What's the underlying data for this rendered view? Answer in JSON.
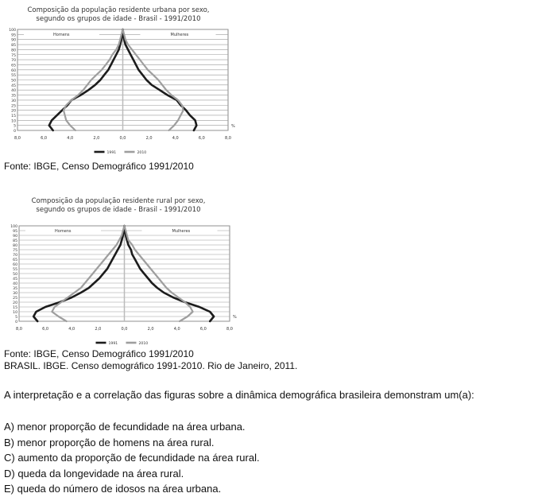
{
  "chart_data": [
    {
      "type": "population-pyramid",
      "title": "Composição da população residente urbana por sexo,",
      "subtitle": "segundo os grupos de idade - Brasil - 1991/2010",
      "left_label": "Homens",
      "right_label": "Mulheres",
      "unit_label": "%",
      "age_ticks": [
        "100",
        "95",
        "90",
        "85",
        "80",
        "75",
        "70",
        "65",
        "60",
        "55",
        "50",
        "45",
        "40",
        "35",
        "30",
        "25",
        "20",
        "15",
        "10",
        "5",
        "0"
      ],
      "x_ticks": [
        "8,0",
        "6,0",
        "4,0",
        "2,0",
        "0,0",
        "2,0",
        "4,0",
        "6,0",
        "8,0"
      ],
      "xlim": [
        -8,
        8
      ],
      "grid": true,
      "legend_position": "bottom",
      "legend": [
        "1991",
        "2010"
      ],
      "colors": {
        "1991": "#1c1c1c",
        "2010": "#9e9e9e"
      },
      "series": [
        {
          "name": "1991",
          "ages": [
            0,
            5,
            10,
            15,
            20,
            25,
            30,
            35,
            40,
            45,
            50,
            55,
            60,
            65,
            70,
            75,
            80,
            85,
            90,
            95,
            100
          ],
          "men": [
            5.3,
            5.6,
            5.4,
            5.0,
            4.6,
            4.2,
            3.9,
            3.2,
            2.6,
            2.1,
            1.7,
            1.4,
            1.1,
            0.9,
            0.7,
            0.5,
            0.3,
            0.2,
            0.1,
            0.05,
            0
          ],
          "women": [
            5.4,
            5.6,
            5.5,
            5.1,
            4.8,
            4.4,
            4.1,
            3.4,
            2.8,
            2.2,
            1.8,
            1.5,
            1.2,
            1.0,
            0.8,
            0.6,
            0.4,
            0.2,
            0.1,
            0.05,
            0
          ]
        },
        {
          "name": "2010",
          "ages": [
            0,
            5,
            10,
            15,
            20,
            25,
            30,
            35,
            40,
            45,
            50,
            55,
            60,
            65,
            70,
            75,
            80,
            85,
            90,
            95,
            100
          ],
          "men": [
            3.6,
            4.0,
            4.3,
            4.4,
            4.5,
            4.3,
            3.9,
            3.4,
            3.0,
            2.7,
            2.4,
            2.0,
            1.6,
            1.3,
            1.0,
            0.8,
            0.5,
            0.3,
            0.2,
            0.1,
            0
          ],
          "women": [
            3.5,
            3.9,
            4.2,
            4.4,
            4.6,
            4.5,
            4.2,
            3.7,
            3.3,
            3.0,
            2.7,
            2.3,
            1.9,
            1.6,
            1.3,
            1.0,
            0.7,
            0.4,
            0.2,
            0.1,
            0
          ]
        }
      ]
    },
    {
      "type": "population-pyramid",
      "title": "Composição da população residente rural por sexo,",
      "subtitle": "segundo os grupos de idade - Brasil - 1991/2010",
      "left_label": "Homens",
      "right_label": "Mulheres",
      "unit_label": "%",
      "age_ticks": [
        "100",
        "95",
        "90",
        "85",
        "80",
        "75",
        "70",
        "65",
        "60",
        "55",
        "50",
        "45",
        "40",
        "35",
        "30",
        "25",
        "20",
        "15",
        "10",
        "5",
        "0"
      ],
      "x_ticks": [
        "8,0",
        "6,0",
        "4,0",
        "2,0",
        "0,0",
        "2,0",
        "4,0",
        "6,0",
        "8,0"
      ],
      "xlim": [
        -8,
        8
      ],
      "grid": true,
      "legend_position": "bottom",
      "legend": [
        "1991",
        "2010"
      ],
      "colors": {
        "1991": "#1c1c1c",
        "2010": "#9e9e9e"
      },
      "series": [
        {
          "name": "1991",
          "ages": [
            0,
            5,
            10,
            15,
            20,
            25,
            30,
            35,
            40,
            45,
            50,
            55,
            60,
            65,
            70,
            75,
            80,
            85,
            90,
            95,
            100
          ],
          "men": [
            6.6,
            6.9,
            6.7,
            6.0,
            4.9,
            4.0,
            3.3,
            2.7,
            2.3,
            1.9,
            1.6,
            1.3,
            1.1,
            0.9,
            0.7,
            0.5,
            0.3,
            0.2,
            0.1,
            0.05,
            0
          ],
          "women": [
            6.5,
            6.8,
            6.5,
            5.7,
            4.6,
            3.7,
            3.0,
            2.5,
            2.1,
            1.8,
            1.5,
            1.2,
            1.0,
            0.8,
            0.6,
            0.5,
            0.3,
            0.2,
            0.1,
            0.05,
            0
          ]
        },
        {
          "name": "2010",
          "ages": [
            0,
            5,
            10,
            15,
            20,
            25,
            30,
            35,
            40,
            45,
            50,
            55,
            60,
            65,
            70,
            75,
            80,
            85,
            90,
            95,
            100
          ],
          "men": [
            4.4,
            5.0,
            5.5,
            5.3,
            4.8,
            4.3,
            3.8,
            3.3,
            3.0,
            2.7,
            2.4,
            2.1,
            1.8,
            1.5,
            1.2,
            0.9,
            0.6,
            0.4,
            0.2,
            0.1,
            0
          ],
          "women": [
            4.2,
            4.8,
            5.2,
            5.0,
            4.6,
            4.1,
            3.6,
            3.2,
            2.9,
            2.6,
            2.3,
            2.0,
            1.7,
            1.4,
            1.1,
            0.8,
            0.6,
            0.3,
            0.2,
            0.1,
            0
          ]
        }
      ]
    }
  ],
  "sources": {
    "urban": "Fonte: IBGE, Censo Demográfico 1991/2010",
    "rural_line1": "Fonte: IBGE, Censo Demográfico 1991/2010",
    "rural_line2": "BRASIL. IBGE. Censo demográfico 1991-2010. Rio de Janeiro, 2011."
  },
  "question": "A interpretação e a correlação das figuras sobre a dinâmica demográfica brasileira demonstram um(a):",
  "options": [
    {
      "label": "A) menor proporção de fecundidade na área urbana."
    },
    {
      "label": "B) menor proporção de homens na área rural."
    },
    {
      "label": "C) aumento da proporção de fecundidade na área rural."
    },
    {
      "label": "D) queda da longevidade na área rural."
    },
    {
      "label": "E) queda do número de idosos na área urbana."
    }
  ]
}
